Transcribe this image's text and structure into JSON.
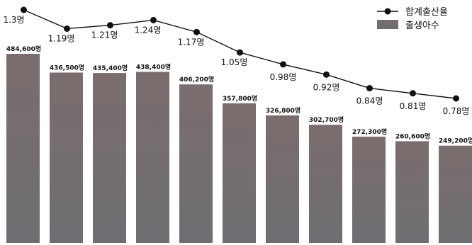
{
  "chart_data": {
    "type": "bar",
    "categories": [
      "",
      "",
      "",
      "",
      "",
      "",
      "",
      "",
      "",
      "",
      ""
    ],
    "series": [
      {
        "name": "출생아수",
        "chart_type": "bar",
        "values": [
          484600,
          436500,
          435400,
          438400,
          406200,
          357800,
          326800,
          302700,
          272300,
          260600,
          249200
        ],
        "labels": [
          "484,600명",
          "436,500명",
          "435,400명",
          "438,400명",
          "406,200명",
          "357,800명",
          "326,800명",
          "302,700명",
          "272,300명",
          "260,600명",
          "249,200명"
        ],
        "color": "#7a6e6e"
      },
      {
        "name": "합계출산율",
        "chart_type": "line",
        "values": [
          1.3,
          1.19,
          1.21,
          1.24,
          1.17,
          1.05,
          0.98,
          0.92,
          0.84,
          0.81,
          0.78
        ],
        "labels": [
          "1.3명",
          "1.19명",
          "1.21명",
          "1.24명",
          "1.17명",
          "1.05명",
          "0.98명",
          "0.92명",
          "0.84명",
          "0.81명",
          "0.78명"
        ],
        "color": "#111111"
      }
    ],
    "legend": "top-right",
    "grid": false,
    "bar_ylim": [
      0,
      500000
    ],
    "line_ylim": [
      0.7,
      1.4
    ]
  }
}
